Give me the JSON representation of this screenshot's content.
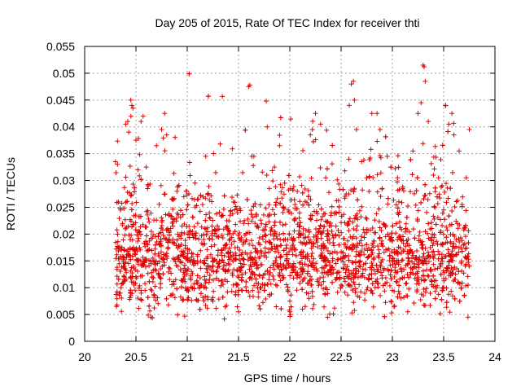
{
  "chart_data": {
    "type": "scatter",
    "title": "Day 205 of 2015, Rate Of TEC Index for receiver thti",
    "xlabel": "GPS time / hours",
    "ylabel": "ROTI / TECUs",
    "xlim": [
      20,
      24
    ],
    "ylim": [
      0,
      0.055
    ],
    "xticks": [
      20,
      20.5,
      21,
      21.5,
      22,
      22.5,
      23,
      23.5,
      24
    ],
    "yticks": [
      0,
      0.005,
      0.01,
      0.015,
      0.02,
      0.025,
      0.03,
      0.035,
      0.04,
      0.045,
      0.05,
      0.055
    ],
    "grid": true,
    "marker": "+",
    "color": "#e00000",
    "series": [
      {
        "name": "ROTI",
        "x_range": [
          20.3,
          23.75
        ],
        "points": [
          [
            20.3,
            0.0335
          ],
          [
            20.32,
            0.033
          ],
          [
            20.33,
            0.026
          ],
          [
            20.35,
            0.0245
          ],
          [
            20.31,
            0.0065
          ],
          [
            20.34,
            0.009
          ],
          [
            20.38,
            0.0155
          ],
          [
            20.4,
            0.0405
          ],
          [
            20.42,
            0.041
          ],
          [
            20.43,
            0.039
          ],
          [
            20.45,
            0.045
          ],
          [
            20.46,
            0.044
          ],
          [
            20.47,
            0.0435
          ],
          [
            20.5,
            0.0375
          ],
          [
            20.52,
            0.032
          ],
          [
            20.55,
            0.041
          ],
          [
            20.57,
            0.042
          ],
          [
            20.6,
            0.0325
          ],
          [
            20.62,
            0.029
          ],
          [
            20.45,
            0.0085
          ],
          [
            20.48,
            0.0105
          ],
          [
            20.55,
            0.0095
          ],
          [
            20.65,
            0.0205
          ],
          [
            20.7,
            0.0365
          ],
          [
            20.75,
            0.0395
          ],
          [
            20.78,
            0.0425
          ],
          [
            20.8,
            0.0385
          ],
          [
            20.82,
            0.0235
          ],
          [
            20.85,
            0.0265
          ],
          [
            20.9,
            0.028
          ],
          [
            20.95,
            0.0215
          ],
          [
            21.0,
            0.0095
          ],
          [
            21.05,
            0.0205
          ],
          [
            21.1,
            0.0265
          ],
          [
            21.15,
            0.0255
          ],
          [
            21.18,
            0.0345
          ],
          [
            21.2,
            0.0135
          ],
          [
            21.25,
            0.0075
          ],
          [
            21.3,
            0.0195
          ],
          [
            21.35,
            0.0235
          ],
          [
            21.4,
            0.0145
          ],
          [
            21.45,
            0.0105
          ],
          [
            21.5,
            0.0055
          ],
          [
            21.55,
            0.022
          ],
          [
            21.6,
            0.0475
          ],
          [
            21.61,
            0.0478
          ],
          [
            21.63,
            0.0345
          ],
          [
            21.65,
            0.0345
          ],
          [
            21.7,
            0.0155
          ],
          [
            21.75,
            0.0095
          ],
          [
            21.77,
            0.0448
          ],
          [
            21.78,
            0.04
          ],
          [
            21.8,
            0.0285
          ],
          [
            21.85,
            0.0325
          ],
          [
            21.9,
            0.0365
          ],
          [
            21.95,
            0.0295
          ],
          [
            22.0,
            0.0055
          ],
          [
            22.0,
            0.0075
          ],
          [
            22.05,
            0.0255
          ],
          [
            22.1,
            0.0215
          ],
          [
            22.15,
            0.0065
          ],
          [
            22.2,
            0.0385
          ],
          [
            22.22,
            0.0395
          ],
          [
            22.25,
            0.0425
          ],
          [
            22.3,
            0.0405
          ],
          [
            22.35,
            0.0305
          ],
          [
            22.4,
            0.0235
          ],
          [
            22.45,
            0.0215
          ],
          [
            22.5,
            0.0105
          ],
          [
            22.55,
            0.0275
          ],
          [
            22.58,
            0.044
          ],
          [
            22.6,
            0.048
          ],
          [
            22.62,
            0.0485
          ],
          [
            22.63,
            0.045
          ],
          [
            22.65,
            0.0395
          ],
          [
            22.7,
            0.0335
          ],
          [
            22.75,
            0.0305
          ],
          [
            22.8,
            0.0425
          ],
          [
            22.85,
            0.0425
          ],
          [
            22.88,
            0.0395
          ],
          [
            22.9,
            0.0285
          ],
          [
            22.95,
            0.0345
          ],
          [
            23.0,
            0.0095
          ],
          [
            23.05,
            0.0305
          ],
          [
            23.1,
            0.0285
          ],
          [
            23.15,
            0.0055
          ],
          [
            23.2,
            0.0355
          ],
          [
            23.25,
            0.0425
          ],
          [
            23.28,
            0.0445
          ],
          [
            23.3,
            0.0515
          ],
          [
            23.31,
            0.0512
          ],
          [
            23.32,
            0.0485
          ],
          [
            23.35,
            0.041
          ],
          [
            23.4,
            0.031
          ],
          [
            23.45,
            0.0305
          ],
          [
            23.5,
            0.0245
          ],
          [
            23.52,
            0.044
          ],
          [
            23.55,
            0.0405
          ],
          [
            23.58,
            0.0425
          ],
          [
            23.6,
            0.0385
          ],
          [
            23.65,
            0.0355
          ],
          [
            23.68,
            0.0255
          ],
          [
            23.7,
            0.0085
          ],
          [
            23.72,
            0.0305
          ],
          [
            23.75,
            0.0395
          ]
        ]
      }
    ]
  }
}
